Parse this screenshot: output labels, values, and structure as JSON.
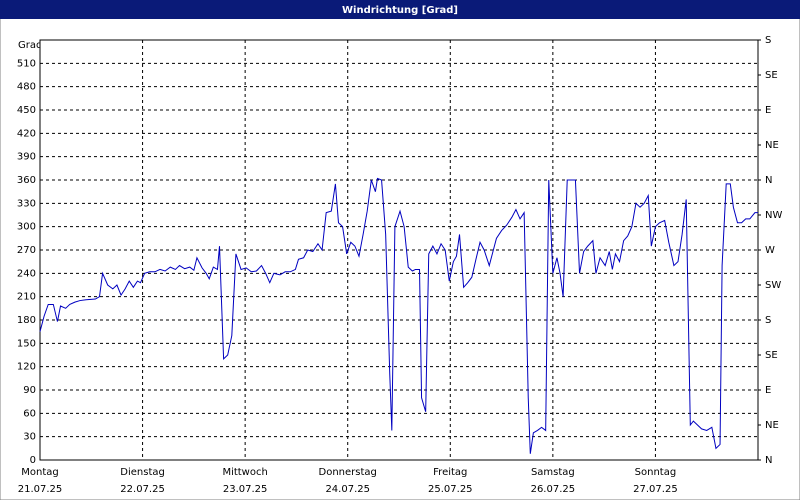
{
  "chart_data": {
    "type": "line",
    "title": "Windrichtung [Grad]",
    "ylabel": "Grad",
    "x": [
      0,
      0.04,
      0.08,
      0.13,
      0.17,
      0.2,
      0.25,
      0.29,
      0.34,
      0.39,
      0.45,
      0.54,
      0.58,
      0.61,
      0.66,
      0.71,
      0.75,
      0.79,
      0.83,
      0.87,
      0.91,
      0.95,
      0.98,
      1.02,
      1.07,
      1.12,
      1.17,
      1.22,
      1.27,
      1.32,
      1.36,
      1.41,
      1.46,
      1.5,
      1.53,
      1.58,
      1.62,
      1.65,
      1.69,
      1.73,
      1.75,
      1.79,
      1.83,
      1.87,
      1.91,
      1.96,
      2.01,
      2.06,
      2.11,
      2.16,
      2.2,
      2.24,
      2.28,
      2.34,
      2.39,
      2.44,
      2.49,
      2.52,
      2.57,
      2.61,
      2.66,
      2.71,
      2.75,
      2.79,
      2.84,
      2.88,
      2.91,
      2.95,
      2.99,
      3.03,
      3.07,
      3.11,
      3.15,
      3.19,
      3.23,
      3.27,
      3.29,
      3.33,
      3.37,
      3.41,
      3.43,
      3.46,
      3.51,
      3.55,
      3.59,
      3.63,
      3.66,
      3.7,
      3.72,
      3.76,
      3.79,
      3.83,
      3.87,
      3.91,
      3.95,
      3.99,
      4.03,
      4.06,
      4.09,
      4.13,
      4.17,
      4.21,
      4.25,
      4.29,
      4.33,
      4.38,
      4.42,
      4.45,
      4.5,
      4.55,
      4.6,
      4.64,
      4.68,
      4.72,
      4.76,
      4.78,
      4.81,
      4.85,
      4.89,
      4.93,
      4.96,
      5,
      5.04,
      5.07,
      5.1,
      5.14,
      5.19,
      5.22,
      5.26,
      5.3,
      5.34,
      5.39,
      5.42,
      5.46,
      5.51,
      5.55,
      5.58,
      5.61,
      5.65,
      5.69,
      5.73,
      5.77,
      5.81,
      5.85,
      5.89,
      5.93,
      5.96,
      6,
      6.04,
      6.09,
      6.13,
      6.18,
      6.22,
      6.26,
      6.3,
      6.34,
      6.37,
      6.41,
      6.45,
      6.5,
      6.55,
      6.59,
      6.63,
      6.65,
      6.69,
      6.73,
      6.76,
      6.8,
      6.84,
      6.88,
      6.92,
      6.97,
      7
    ],
    "series": [
      {
        "color": "#0000c0",
        "values": [
          165,
          185,
          200,
          200,
          178,
          198,
          195,
          200,
          203,
          205,
          206,
          207,
          210,
          240,
          225,
          220,
          225,
          212,
          220,
          230,
          222,
          230,
          228,
          240,
          242,
          242,
          245,
          243,
          248,
          245,
          250,
          246,
          248,
          244,
          260,
          247,
          240,
          233,
          248,
          245,
          275,
          130,
          135,
          160,
          265,
          245,
          247,
          242,
          243,
          250,
          240,
          228,
          240,
          238,
          242,
          242,
          245,
          258,
          260,
          270,
          268,
          278,
          270,
          318,
          320,
          355,
          305,
          300,
          265,
          280,
          275,
          262,
          290,
          320,
          360,
          345,
          362,
          360,
          290,
          110,
          38,
          300,
          320,
          300,
          248,
          243,
          245,
          245,
          80,
          62,
          265,
          275,
          265,
          278,
          270,
          230,
          255,
          262,
          290,
          222,
          228,
          235,
          258,
          280,
          270,
          250,
          270,
          285,
          295,
          302,
          312,
          322,
          310,
          318,
          80,
          8,
          35,
          38,
          42,
          38,
          360,
          240,
          260,
          240,
          210,
          360,
          360,
          360,
          240,
          268,
          275,
          282,
          240,
          260,
          250,
          268,
          245,
          265,
          255,
          282,
          288,
          300,
          330,
          325,
          330,
          340,
          275,
          300,
          305,
          308,
          280,
          250,
          255,
          290,
          335,
          45,
          50,
          45,
          40,
          38,
          42,
          15,
          20,
          250,
          355,
          355,
          325,
          305,
          305,
          310,
          310,
          318,
          318
        ]
      }
    ],
    "xlim": [
      0,
      7
    ],
    "xticks": [
      {
        "value": 0,
        "label": "Montag"
      },
      {
        "value": 1,
        "label": "Dienstag"
      },
      {
        "value": 2,
        "label": "Mittwoch"
      },
      {
        "value": 3,
        "label": "Donnerstag"
      },
      {
        "value": 4,
        "label": "Freitag"
      },
      {
        "value": 5,
        "label": "Samstag"
      },
      {
        "value": 6,
        "label": "Sonntag"
      }
    ],
    "xtick_dates": [
      "21.07.25",
      "22.07.25",
      "23.07.25",
      "24.07.25",
      "25.07.25",
      "26.07.25",
      "27.07.25"
    ],
    "ylim": [
      0,
      540
    ],
    "yticks": [
      0,
      30,
      60,
      90,
      120,
      150,
      180,
      210,
      240,
      270,
      300,
      330,
      360,
      390,
      420,
      450,
      480,
      510
    ],
    "y2lim": [
      0,
      540
    ],
    "y2ticks": [
      {
        "value": 0,
        "label": "N"
      },
      {
        "value": 45,
        "label": "NE"
      },
      {
        "value": 90,
        "label": "E"
      },
      {
        "value": 135,
        "label": "SE"
      },
      {
        "value": 180,
        "label": "S"
      },
      {
        "value": 225,
        "label": "SW"
      },
      {
        "value": 270,
        "label": "W"
      },
      {
        "value": 315,
        "label": "NW"
      },
      {
        "value": 360,
        "label": "N"
      },
      {
        "value": 405,
        "label": "NE"
      },
      {
        "value": 450,
        "label": "E"
      },
      {
        "value": 495,
        "label": "SE"
      },
      {
        "value": 540,
        "label": "S"
      }
    ],
    "grid": true
  }
}
